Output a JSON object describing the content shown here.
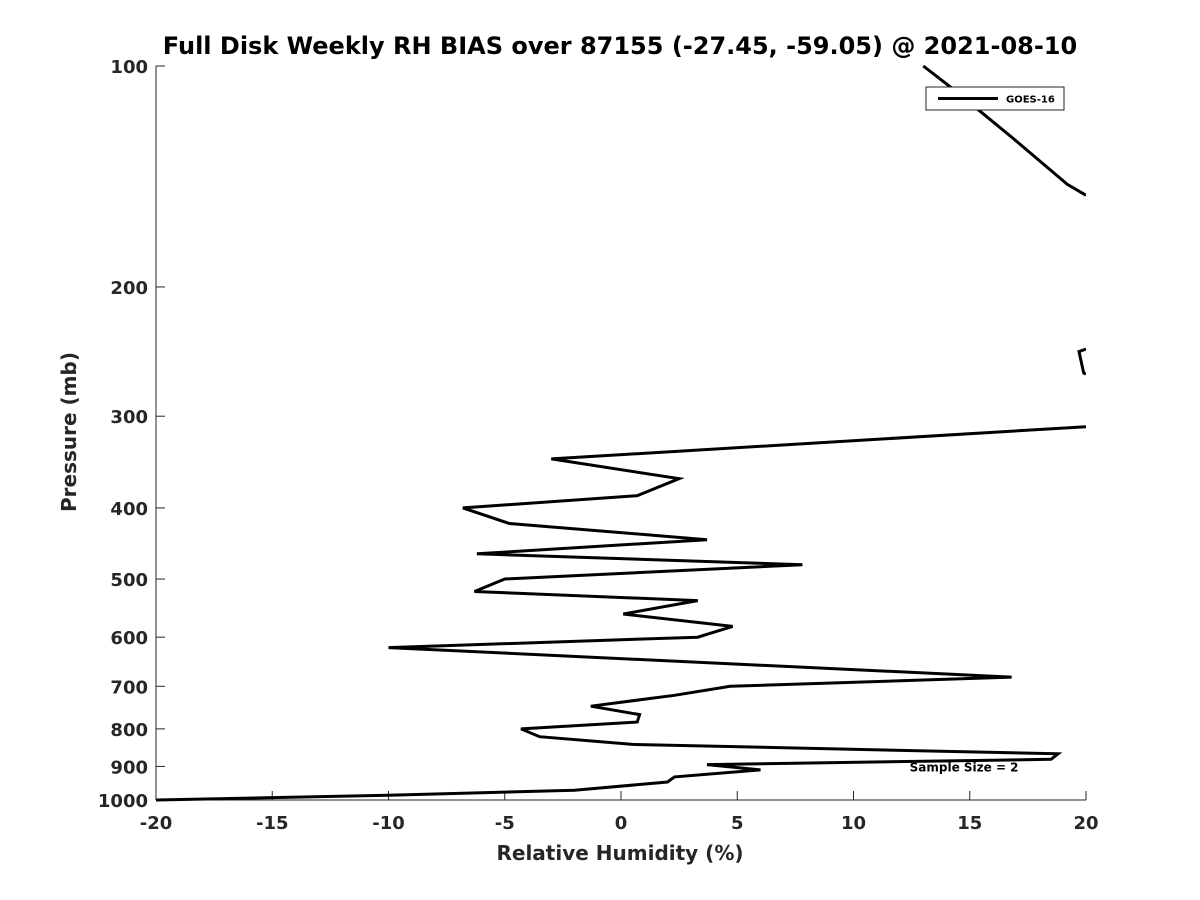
{
  "chart_data": {
    "type": "line",
    "title": "Full Disk Weekly RH BIAS over 87155 (-27.45, -59.05) @ 2021-08-10",
    "xlabel": "Relative Humidity (%)",
    "ylabel": "Pressure (mb)",
    "xlim": [
      -20,
      20
    ],
    "ylim": [
      1000,
      100
    ],
    "y_scale": "log",
    "y_reversed": true,
    "grid": false,
    "legend_position": "top-right",
    "x_ticks": [
      -20,
      -15,
      -10,
      -5,
      0,
      5,
      10,
      15,
      20
    ],
    "x_tick_labels": [
      "-20",
      "-15",
      "-10",
      "-5",
      "0",
      "5",
      "10",
      "15",
      "20"
    ],
    "y_ticks": [
      100,
      200,
      300,
      400,
      500,
      600,
      700,
      800,
      900,
      1000
    ],
    "y_tick_labels": [
      "100",
      "200",
      "300",
      "400",
      "500",
      "600",
      "700",
      "800",
      "900",
      "1000"
    ],
    "annotations": [
      {
        "text": "Sample Size = 2",
        "x": 12.5,
        "y": 900
      }
    ],
    "series": [
      {
        "name": "GOES-16",
        "color": "#000000",
        "segments": [
          [
            {
              "x": 13.0,
              "y": 100
            },
            {
              "x": 14.2,
              "y": 107
            },
            {
              "x": 16.8,
              "y": 125
            },
            {
              "x": 19.2,
              "y": 145
            },
            {
              "x": 20.0,
              "y": 150
            }
          ],
          [
            {
              "x": 20.0,
              "y": 243
            },
            {
              "x": 19.7,
              "y": 245
            },
            {
              "x": 19.9,
              "y": 262
            },
            {
              "x": 20.0,
              "y": 263
            }
          ],
          [
            {
              "x": 20.0,
              "y": 310
            },
            {
              "x": -3.0,
              "y": 343
            },
            {
              "x": 2.5,
              "y": 365
            },
            {
              "x": 0.7,
              "y": 385
            },
            {
              "x": -6.8,
              "y": 400
            },
            {
              "x": -4.8,
              "y": 420
            },
            {
              "x": 3.7,
              "y": 442
            },
            {
              "x": -6.2,
              "y": 462
            },
            {
              "x": 7.8,
              "y": 478
            },
            {
              "x": -5.0,
              "y": 500
            },
            {
              "x": -6.3,
              "y": 520
            },
            {
              "x": 3.3,
              "y": 535
            },
            {
              "x": 0.1,
              "y": 558
            },
            {
              "x": 4.8,
              "y": 580
            },
            {
              "x": 3.3,
              "y": 600
            },
            {
              "x": -10.0,
              "y": 620
            },
            {
              "x": 16.8,
              "y": 680
            },
            {
              "x": 4.7,
              "y": 700
            },
            {
              "x": 2.3,
              "y": 720
            },
            {
              "x": -1.3,
              "y": 745
            },
            {
              "x": 0.8,
              "y": 765
            },
            {
              "x": 0.7,
              "y": 783
            },
            {
              "x": -4.3,
              "y": 800
            },
            {
              "x": -3.5,
              "y": 820
            },
            {
              "x": 0.5,
              "y": 840
            },
            {
              "x": 18.8,
              "y": 865
            },
            {
              "x": 18.5,
              "y": 880
            },
            {
              "x": 3.7,
              "y": 895
            },
            {
              "x": 6.0,
              "y": 910
            },
            {
              "x": 2.3,
              "y": 930
            },
            {
              "x": 2.0,
              "y": 945
            },
            {
              "x": -2.0,
              "y": 970
            },
            {
              "x": -10.0,
              "y": 985
            },
            {
              "x": -20.0,
              "y": 1000
            }
          ]
        ]
      }
    ]
  }
}
